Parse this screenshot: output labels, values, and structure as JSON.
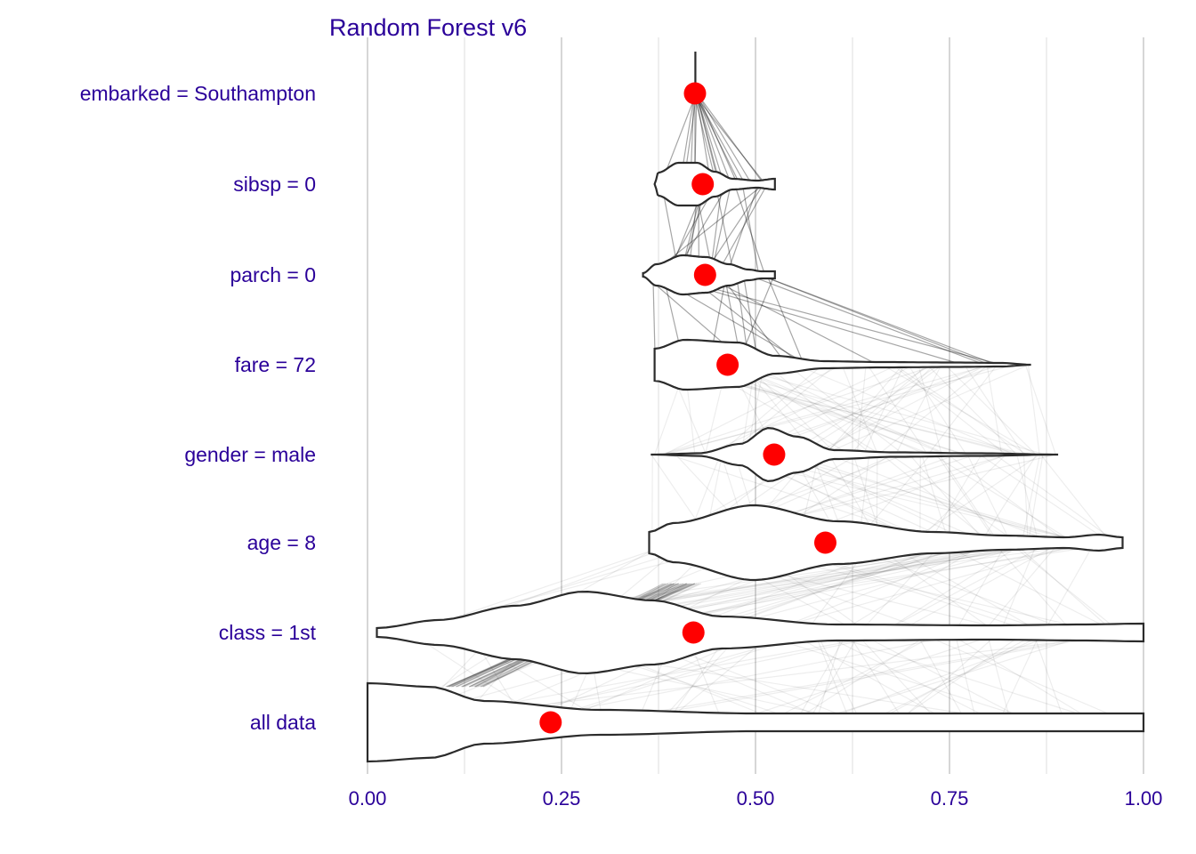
{
  "chart_data": {
    "type": "violin",
    "title": "Random Forest v6",
    "xlabel": "",
    "ylabel": "",
    "xlim": [
      0,
      1
    ],
    "xticks": [
      "0.00",
      "0.25",
      "0.50",
      "0.75",
      "1.00"
    ],
    "grid": "vertical",
    "legend": "none",
    "colors": {
      "text": "#2a0099",
      "dot": "#ff0000",
      "violin_stroke": "#2b2b2b",
      "grid": "#d6d6d6"
    },
    "rows": [
      {
        "label": "embarked = Southampton",
        "mean": 0.422,
        "range": [
          0.42,
          0.425
        ]
      },
      {
        "label": "sibsp = 0",
        "mean": 0.432,
        "range": [
          0.37,
          0.525
        ]
      },
      {
        "label": "parch = 0",
        "mean": 0.435,
        "range": [
          0.355,
          0.525
        ]
      },
      {
        "label": "fare = 72",
        "mean": 0.464,
        "range": [
          0.37,
          0.855
        ]
      },
      {
        "label": "gender = male",
        "mean": 0.524,
        "range": [
          0.365,
          0.89
        ]
      },
      {
        "label": "age = 8",
        "mean": 0.59,
        "range": [
          0.363,
          0.973
        ]
      },
      {
        "label": "class = 1st",
        "mean": 0.42,
        "range": [
          0.012,
          1.0
        ]
      },
      {
        "label": "all data",
        "mean": 0.236,
        "range": [
          0.0,
          1.0
        ]
      }
    ]
  }
}
